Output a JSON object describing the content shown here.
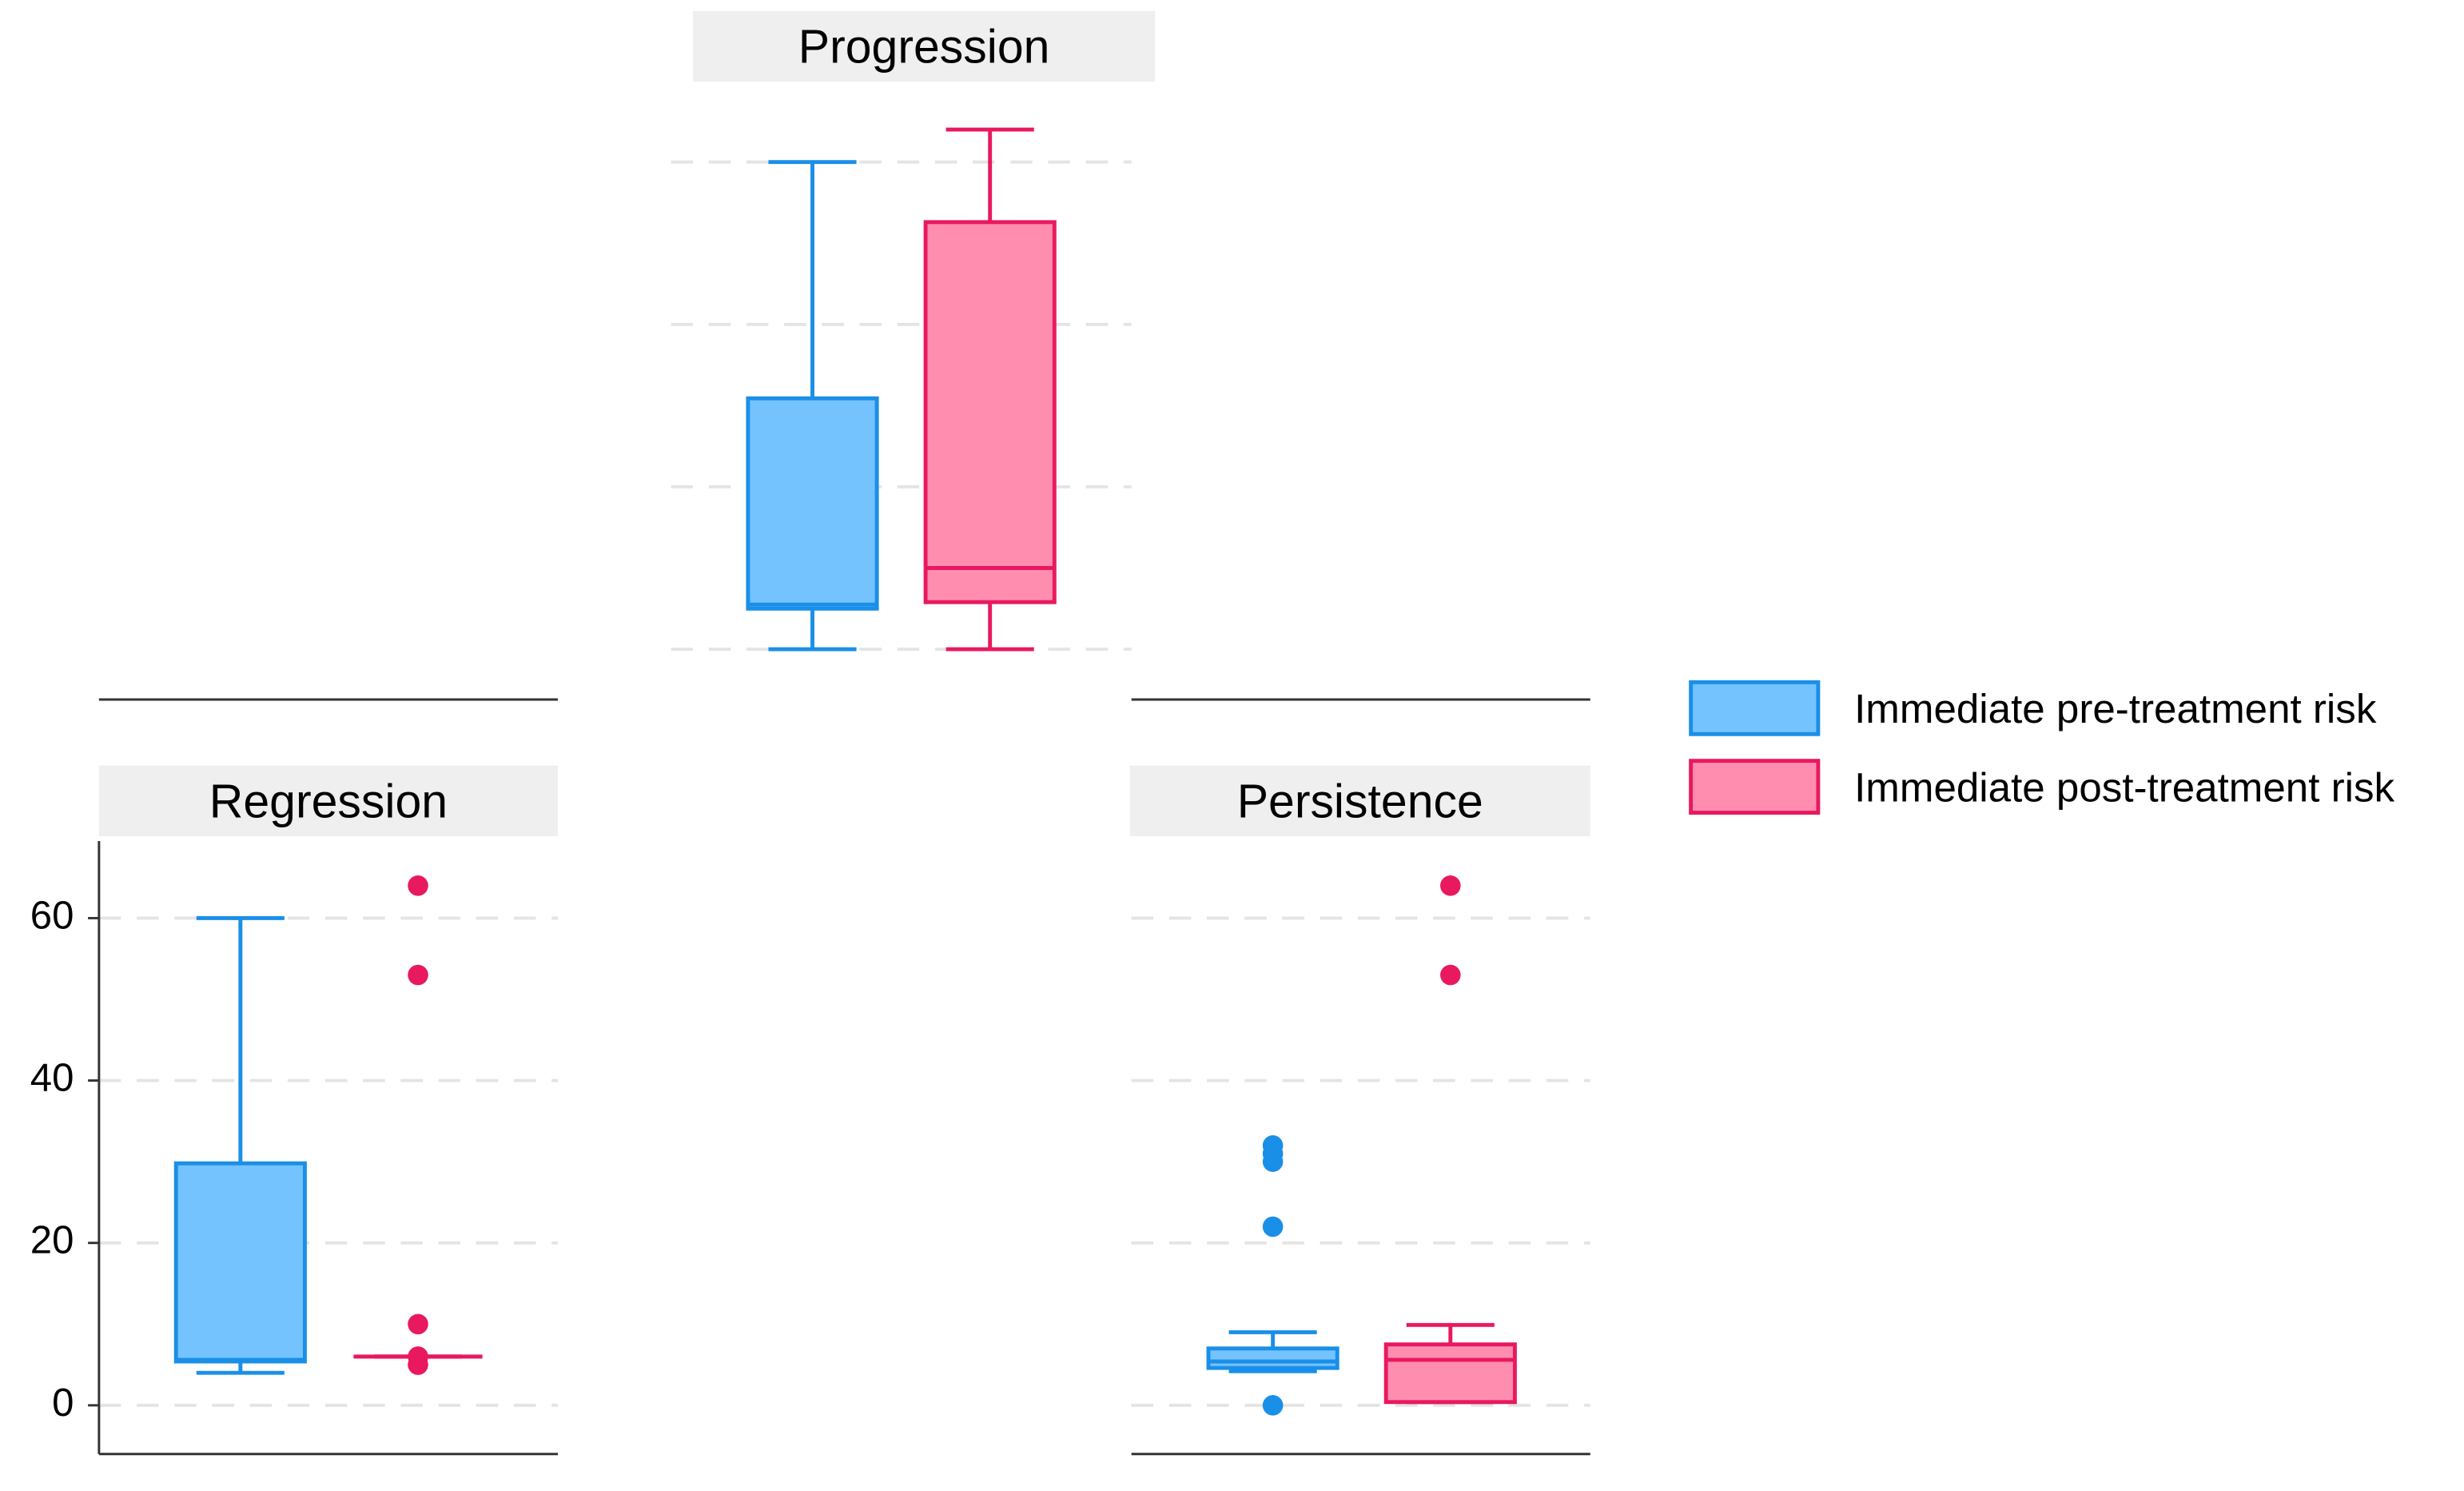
{
  "chart_data": [
    {
      "type": "box",
      "title": "Progression",
      "ylim": [
        -6,
        69.5
      ],
      "yticks": [
        0,
        20,
        40,
        60
      ],
      "tick_labels": false,
      "grid": true,
      "series": [
        {
          "name": "Immediate pre-treatment risk",
          "color": "#1a8fe8",
          "fill": "#74c3ff",
          "whislo": 0,
          "q1": 5,
          "med": 5.5,
          "q3": 30.9,
          "whishi": 60,
          "fliers": []
        },
        {
          "name": "Immediate post-treatment risk",
          "color": "#e8195f",
          "fill": "#ff8db0",
          "whislo": 0,
          "q1": 5.8,
          "med": 10,
          "q3": 52.6,
          "whishi": 64,
          "fliers": []
        }
      ]
    },
    {
      "type": "box",
      "title": "Regression",
      "ylim": [
        -6,
        69.5
      ],
      "yticks": [
        0,
        20,
        40,
        60
      ],
      "tick_labels": true,
      "grid": true,
      "series": [
        {
          "name": "Immediate pre-treatment risk",
          "color": "#1a8fe8",
          "fill": "#74c3ff",
          "whislo": 4,
          "q1": 5.4,
          "med": 5.6,
          "q3": 29.8,
          "whishi": 60,
          "fliers": []
        },
        {
          "name": "Immediate post-treatment risk",
          "color": "#e8195f",
          "fill": "#ff8db0",
          "whislo": 6,
          "q1": 6,
          "med": 6,
          "q3": 6,
          "whishi": 6,
          "fliers": [
            64,
            53,
            10,
            6,
            5
          ]
        }
      ]
    },
    {
      "type": "box",
      "title": "Persistence",
      "ylim": [
        -6,
        69.5
      ],
      "yticks": [
        0,
        20,
        40,
        60
      ],
      "tick_labels": false,
      "grid": true,
      "series": [
        {
          "name": "Immediate pre-treatment risk",
          "color": "#1a8fe8",
          "fill": "#74c3ff",
          "whislo": 4.2,
          "q1": 4.6,
          "med": 5.4,
          "q3": 7,
          "whishi": 9,
          "fliers": [
            0,
            22,
            30,
            31,
            32
          ]
        },
        {
          "name": "Immediate post-treatment risk",
          "color": "#e8195f",
          "fill": "#ff8db0",
          "whislo": 0.4,
          "q1": 0.4,
          "med": 5.6,
          "q3": 7.5,
          "whishi": 9.9,
          "fliers": [
            53,
            64
          ]
        }
      ]
    }
  ]
}
